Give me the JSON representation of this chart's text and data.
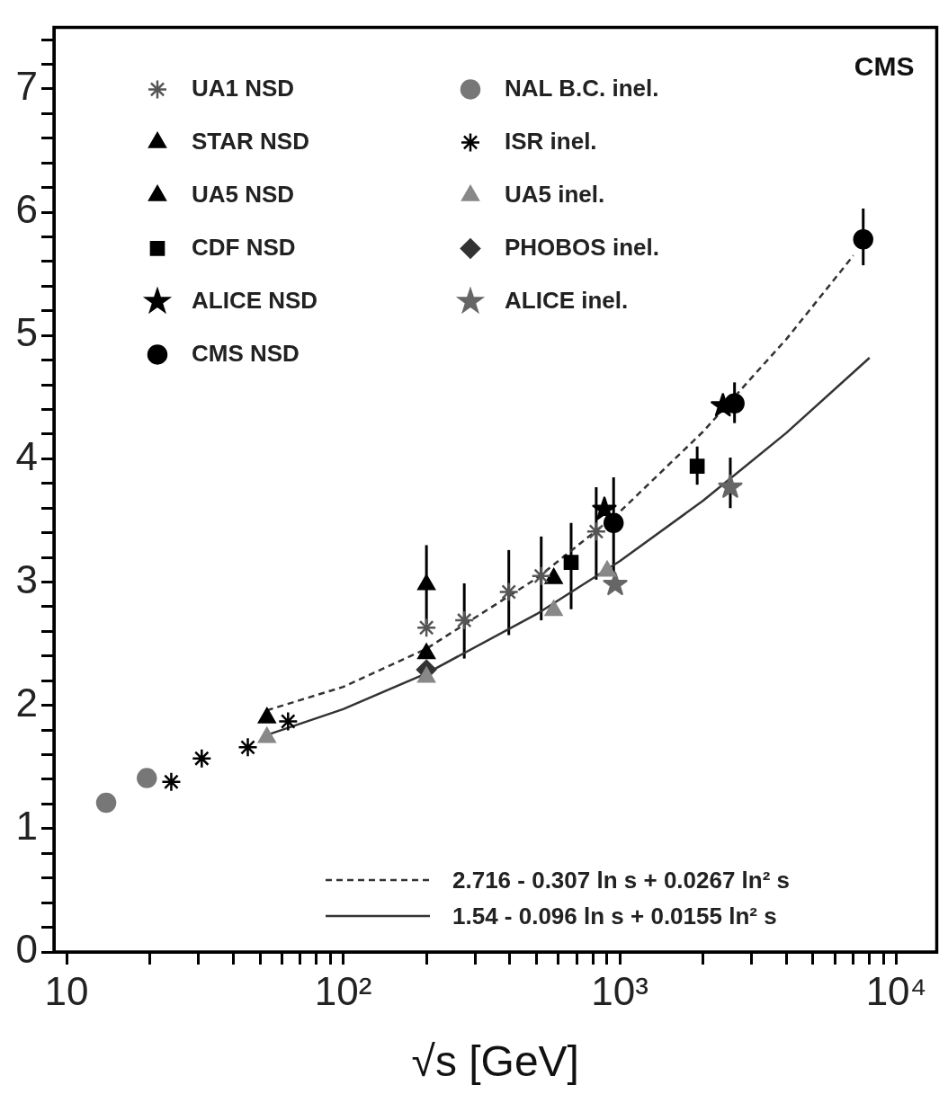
{
  "chart_data": {
    "type": "scatter",
    "xlabel": "√s [GeV]",
    "log": "x",
    "xlim": [
      9,
      14000
    ],
    "ylim": [
      0,
      7.5
    ],
    "xticks": [
      {
        "value": 10,
        "label": "10"
      },
      {
        "value": 20,
        "label": null
      },
      {
        "value": 30,
        "label": null
      },
      {
        "value": 40,
        "label": null
      },
      {
        "value": 50,
        "label": null
      },
      {
        "value": 60,
        "label": null
      },
      {
        "value": 70,
        "label": null
      },
      {
        "value": 80,
        "label": null
      },
      {
        "value": 90,
        "label": null
      },
      {
        "value": 100,
        "label": "10²"
      },
      {
        "value": 200,
        "label": null
      },
      {
        "value": 300,
        "label": null
      },
      {
        "value": 400,
        "label": null
      },
      {
        "value": 500,
        "label": null
      },
      {
        "value": 600,
        "label": null
      },
      {
        "value": 700,
        "label": null
      },
      {
        "value": 800,
        "label": null
      },
      {
        "value": 900,
        "label": null
      },
      {
        "value": 1000,
        "label": "10³"
      },
      {
        "value": 2000,
        "label": null
      },
      {
        "value": 3000,
        "label": null
      },
      {
        "value": 4000,
        "label": null
      },
      {
        "value": 5000,
        "label": null
      },
      {
        "value": 6000,
        "label": null
      },
      {
        "value": 7000,
        "label": null
      },
      {
        "value": 8000,
        "label": null
      },
      {
        "value": 9000,
        "label": null
      },
      {
        "value": 10000,
        "label": "10⁴"
      }
    ],
    "yticks": [
      0,
      {
        "value": 0.2,
        "label": null
      },
      {
        "value": 0.4,
        "label": null
      },
      {
        "value": 0.6,
        "label": null
      },
      {
        "value": 0.8,
        "label": null
      },
      1,
      {
        "value": 1.2,
        "label": null
      },
      {
        "value": 1.4,
        "label": null
      },
      {
        "value": 1.6,
        "label": null
      },
      {
        "value": 1.8,
        "label": null
      },
      2,
      {
        "value": 2.2,
        "label": null
      },
      {
        "value": 2.4,
        "label": null
      },
      {
        "value": 2.6,
        "label": null
      },
      {
        "value": 2.8,
        "label": null
      },
      3,
      {
        "value": 3.2,
        "label": null
      },
      {
        "value": 3.4,
        "label": null
      },
      {
        "value": 3.6,
        "label": null
      },
      {
        "value": 3.8,
        "label": null
      },
      4,
      {
        "value": 4.2,
        "label": null
      },
      {
        "value": 4.4,
        "label": null
      },
      {
        "value": 4.6,
        "label": null
      },
      {
        "value": 4.8,
        "label": null
      },
      5,
      {
        "value": 5.2,
        "label": null
      },
      {
        "value": 5.4,
        "label": null
      },
      {
        "value": 5.6,
        "label": null
      },
      {
        "value": 5.8,
        "label": null
      },
      6,
      {
        "value": 6.2,
        "label": null
      },
      {
        "value": 6.4,
        "label": null
      },
      {
        "value": 6.6,
        "label": null
      },
      {
        "value": 6.8,
        "label": null
      },
      7,
      {
        "value": 7.2,
        "label": null
      },
      {
        "value": 7.4,
        "label": null
      }
    ],
    "legend": "left",
    "annotations": [
      "CMS"
    ],
    "series": [
      {
        "type": "line",
        "name": "2.716 - 0.307 ln s + 0.0267 ln² s",
        "color": "#333333",
        "line_style": "dashed",
        "marker": "none",
        "x": [
          53,
          100,
          200,
          500,
          1000,
          2000,
          4000,
          7000
        ],
        "values": [
          1.96,
          2.15,
          2.46,
          3.03,
          3.57,
          4.22,
          4.97,
          5.65
        ]
      },
      {
        "type": "line",
        "name": "1.54 - 0.096 ln s + 0.0155 ln² s",
        "color": "#333333",
        "line_style": "solid",
        "marker": "none",
        "x": [
          53,
          100,
          200,
          500,
          1000,
          2000,
          4000,
          8000
        ],
        "values": [
          1.76,
          1.97,
          2.26,
          2.74,
          3.17,
          3.66,
          4.21,
          4.82
        ]
      },
      {
        "name": "UA1 NSD",
        "color": "#555555",
        "marker": "cross",
        "x": [
          200,
          274,
          397,
          520,
          822
        ],
        "values": [
          2.63,
          2.69,
          2.92,
          3.05,
          3.41
        ],
        "errors": [
          null,
          [
            2.38,
            2.99
          ],
          [
            2.57,
            3.26
          ],
          [
            2.69,
            3.37
          ],
          [
            3.02,
            3.77
          ]
        ]
      },
      {
        "name": "STAR NSD",
        "color": "#000000",
        "marker": "triangle",
        "x": [
          200
        ],
        "values": [
          2.98
        ],
        "errors": [
          [
            2.66,
            3.3
          ]
        ]
      },
      {
        "name": "UA5 NSD",
        "color": "#000000",
        "marker": "triangle",
        "x": [
          53,
          200,
          577
        ],
        "values": [
          1.9,
          2.42,
          3.03
        ]
      },
      {
        "name": "CDF NSD",
        "color": "#000000",
        "marker": "square",
        "x": [
          667,
          1905
        ],
        "values": [
          3.16,
          3.94
        ],
        "errors": [
          [
            2.78,
            3.48
          ],
          [
            3.79,
            4.1
          ]
        ]
      },
      {
        "name": "ALICE NSD",
        "color": "#000000",
        "marker": "star",
        "x": [
          880,
          2360
        ],
        "values": [
          3.59,
          4.43
        ]
      },
      {
        "name": "CMS NSD",
        "color": "#000000",
        "marker": "circle",
        "x": [
          950,
          2600,
          7590
        ],
        "values": [
          3.48,
          4.45,
          5.78
        ],
        "errors": [
          [
            3.07,
            3.85
          ],
          [
            4.29,
            4.62
          ],
          [
            5.57,
            6.03
          ]
        ]
      },
      {
        "name": "NAL B.C. inel.",
        "color": "#777777",
        "marker": "circle",
        "x": [
          13.9,
          19.5
        ],
        "values": [
          1.21,
          1.41
        ]
      },
      {
        "name": "ISR inel.",
        "color": "#000000",
        "marker": "cross",
        "x": [
          23.9,
          30.8,
          45.2,
          63.2
        ],
        "values": [
          1.38,
          1.57,
          1.66,
          1.87
        ]
      },
      {
        "name": "UA5 inel.",
        "color": "#888888",
        "marker": "triangle",
        "x": [
          53,
          200,
          577,
          900
        ],
        "values": [
          1.74,
          2.23,
          2.77,
          3.09
        ]
      },
      {
        "name": "PHOBOS inel.",
        "color": "#333333",
        "marker": "diamond",
        "x": [
          200
        ],
        "values": [
          2.29
        ]
      },
      {
        "name": "ALICE inel.",
        "color": "#666666",
        "marker": "star",
        "x": [
          963,
          2510
        ],
        "values": [
          2.98,
          3.77
        ],
        "errors": [
          null,
          [
            3.6,
            4.01
          ]
        ]
      }
    ]
  }
}
